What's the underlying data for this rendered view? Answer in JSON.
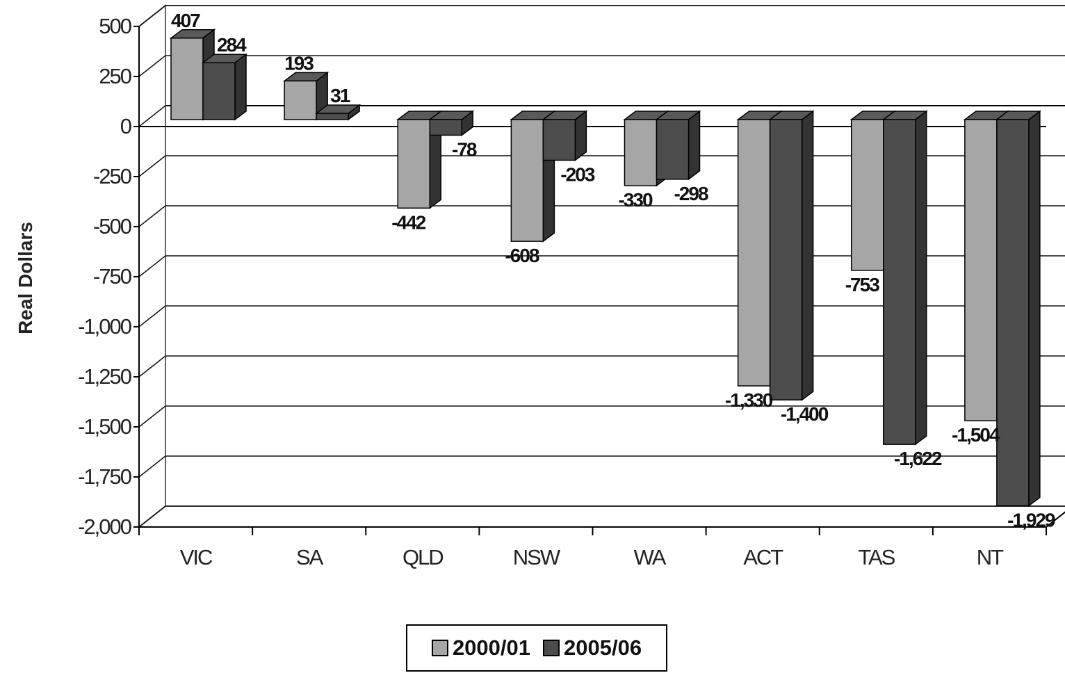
{
  "chart_data": {
    "type": "bar",
    "categories": [
      "VIC",
      "SA",
      "QLD",
      "NSW",
      "WA",
      "ACT",
      "TAS",
      "NT"
    ],
    "series": [
      {
        "name": "2000/01",
        "values": [
          407,
          193,
          -442,
          -608,
          -330,
          -1330,
          -753,
          -1504
        ],
        "labels": [
          "407",
          "193",
          "-442",
          "-608",
          "-330",
          "-1,330",
          "-753",
          "-1,504"
        ]
      },
      {
        "name": "2005/06",
        "values": [
          284,
          31,
          -78,
          -203,
          -298,
          -1400,
          -1622,
          -1929
        ],
        "labels": [
          "284",
          "31",
          "-78",
          "-203",
          "-298",
          "-1,400",
          "-1,622",
          "-1,929"
        ]
      }
    ],
    "ylabel": "Real Dollars",
    "ylim": [
      -2000,
      500
    ],
    "yticks": [
      500,
      250,
      0,
      -250,
      -500,
      -750,
      -1000,
      -1250,
      -1500,
      -1750,
      -2000
    ],
    "ytick_labels": [
      "500",
      "250",
      "0",
      "-250",
      "-500",
      "-750",
      "-1,000",
      "-1,250",
      "-1,500",
      "-1,750",
      "-2,000"
    ],
    "grid": true,
    "legend": "bottom",
    "colors": {
      "series1": "#a6a6a6",
      "series2": "#4d4d4d",
      "top": "#5a5a5a",
      "side": "#333333"
    }
  }
}
